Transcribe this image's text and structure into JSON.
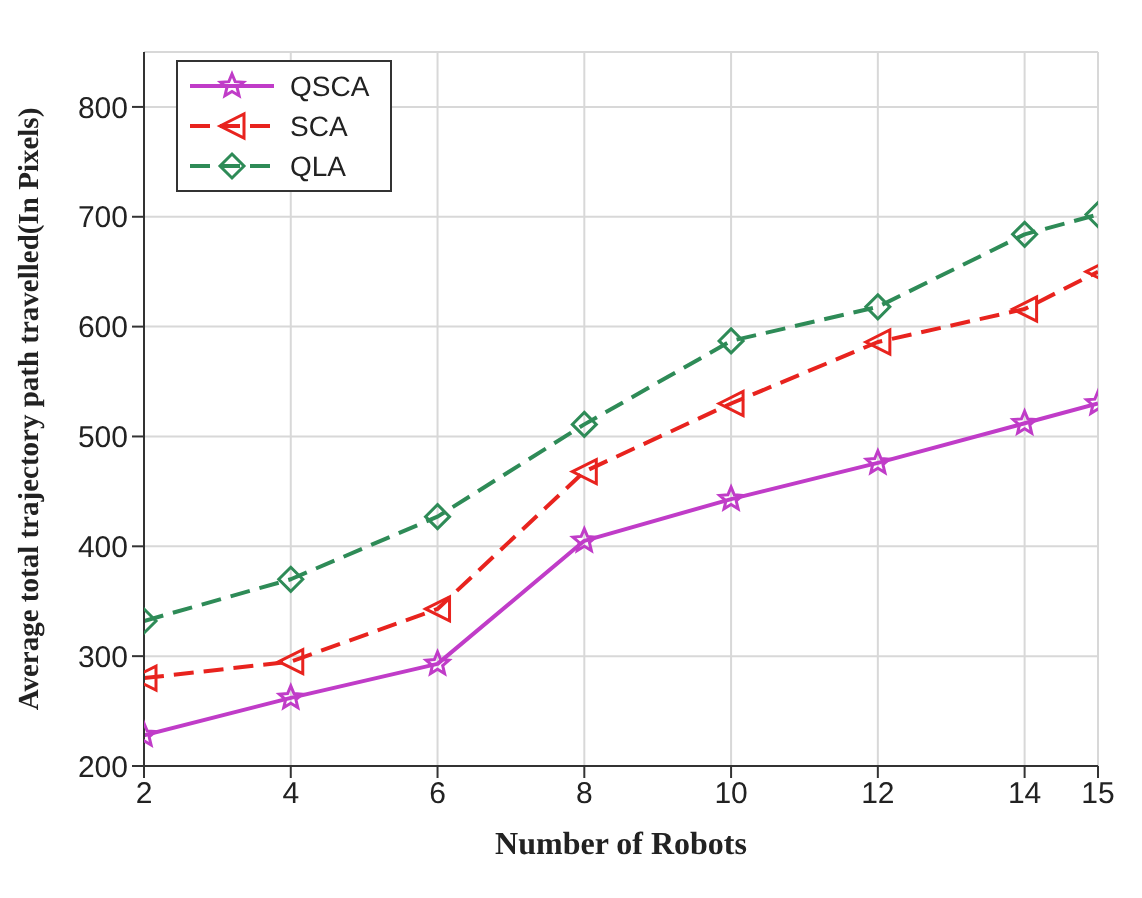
{
  "chart_data": {
    "type": "line",
    "xlabel": "Number of Robots",
    "ylabel": "Average total trajectory path travelled(In Pixels)",
    "x": [
      2,
      4,
      6,
      8,
      10,
      12,
      14,
      15
    ],
    "series": [
      {
        "name": "QSCA",
        "color": "#c03cc8",
        "marker": "star",
        "line_style": "solid",
        "values": [
          228,
          262,
          293,
          405,
          443,
          476,
          512,
          530
        ]
      },
      {
        "name": "SCA",
        "color": "#e8231e",
        "marker": "triangle",
        "line_style": "dashed",
        "values": [
          280,
          295,
          343,
          468,
          530,
          586,
          616,
          650
        ]
      },
      {
        "name": "QLA",
        "color": "#2e8b57",
        "marker": "diamond",
        "line_style": "dashed",
        "values": [
          332,
          370,
          427,
          511,
          587,
          618,
          684,
          702
        ]
      }
    ],
    "xlim": [
      2,
      15
    ],
    "xticks": [
      2,
      4,
      6,
      8,
      10,
      12,
      14,
      15
    ],
    "ylim": [
      200,
      850
    ],
    "yticks": [
      200,
      300,
      400,
      500,
      600,
      700,
      800
    ],
    "grid": true,
    "legend": "top left"
  }
}
